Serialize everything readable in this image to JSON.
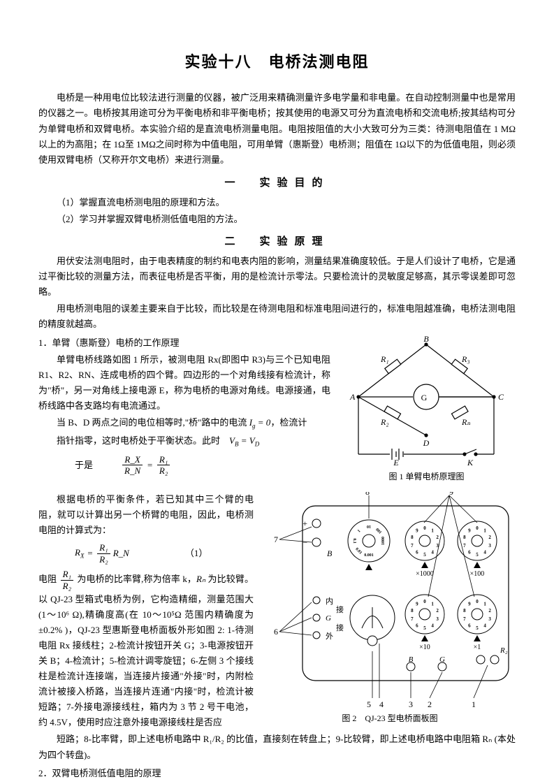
{
  "title": "实验十八　电桥法测电阻",
  "intro": "电桥是一种用电位比较法进行测量的仪器，被广泛用来精确测量许多电学量和非电量。在自动控制测量中也是常用的仪器之一。电桥按其用途可分为平衡电桥和非平衡电桥；按其使用的电源又可分为直流电桥和交流电桥;按其结构可分为单臂电桥和双臂电桥。本实验介绍的是直流电桥测量电阻。电阻按阻值的大小大致可分为三类：待测电阻值在 1 MΩ以上的为高阻；在 1Ω至 1MΩ之间时称为中值电阻，可用单臂（惠斯登）电桥测；阻值在 1Ω以下的为低值电阻，则必须使用双臂电桥（又称开尔文电桥）来进行测量。",
  "section1": {
    "header": "一　实验目的",
    "item1": "（1）掌握直流电桥测电阻的原理和方法。",
    "item2": "（2）学习并掌握双臂电桥测低值电阻的方法。"
  },
  "section2": {
    "header": "二　实验原理",
    "p1": "用伏安法测电阻时，由于电表精度的制约和电表内阻的影响，测量结果准确度较低。于是人们设计了电桥，它是通过平衡比较的测量方法，而表征电桥是否平衡，用的是检流计示零法。只要检流计的灵敏度足够高，其示零误差即可忽略。",
    "p2": "用电桥测电阻的误差主要来自于比较，而比较是在待测电阻和标准电阻间进行的，标准电阻越准确，电桥法测电阻的精度就越高。",
    "h1": "1．单臂（惠斯登）电桥的工作原理",
    "p3": "单臂电桥线路如图 1 所示，被测电阻 Rx(即图中 R3)与三个已知电阻 R1、R2、RN、连成电桥的四个臂。四边形的一个对角线接有检流计，称为\"桥\"，另一对角线上接电源 E，称为电桥的电源对角线。电源接通，电桥线路中各支路均有电流通过。",
    "p4_a": "当 B、D 两点之间的电位相等时,\"桥\"路中的电流 ",
    "p4_b": "，检流计",
    "p5_a": "指针指零，这时电桥处于平衡状态。此时",
    "yushi": "于是",
    "p6": "根据电桥的平衡条件，若已知其中三个臂的电阻，就可以计算出另一个桥臂的电阻，因此，电桥测电阻的计算式为：",
    "p7_a": "电阻",
    "p7_b": "为电桥的比率臂,称为倍率 k，",
    "p7_c": "为比较臂。以 QJ-23 型箱式电桥为例，它构造精细，测量范围大(1～10⁶ Ω),精确度高(在 10～10⁵Ω 范围内精确度为±0.2% )，QJ-23 型惠斯登电桥面板外形如图 2: 1-待测电阻 Rx 接线柱；2-检流计按钮开关 G；3-电源按钮开关 B；4-检流计；5-检流计调零旋钮；6-左侧 3 个接线柱是检流计连接端，当连接片接通\"外接\"时，内附检流计被接入桥路，当连接片连通\"内接\"时，检流计被短路；7-外接电源接线柱，箱内为 3 节 2 号干电池，约 4.5V，使用时应注意外接电源接线柱是否应",
    "p8": "短路；8-比率臂，即上述电桥电路中 R₁/R₂ 的比值，直接刻在转盘上；9-比较臂，即上述电桥电路中电阻箱 Rₙ (本处为四个转盘)。",
    "h2": "2．双臂电桥测低值电阻的原理"
  },
  "fig1": {
    "caption": "图 1 单臂电桥原理图",
    "labels": {
      "A": "A",
      "B": "B",
      "C": "C",
      "D": "D",
      "E": "E",
      "K": "K",
      "G": "G",
      "R1": "R₁",
      "R2": "R₂",
      "R3": "R₃",
      "RN": "Rₙ"
    },
    "stroke": "#000000",
    "fill": "#ffffff"
  },
  "fig2": {
    "caption": "图 2　QJ-23 型电桥面板图",
    "labels": {
      "plus": "+",
      "minus": "−",
      "B": "B",
      "nei": "内",
      "wai": "外",
      "jie1": "接",
      "jie2": "接",
      "G": "G",
      "x1000": "×1000",
      "x100": "×100",
      "x10": "×10",
      "x1": "×1",
      "B2": "B",
      "G2": "G",
      "R2": "R₂",
      "n1": "1",
      "n2": "2",
      "n3": "3",
      "n4": "4",
      "n5": "5",
      "n6": "6",
      "n7": "7",
      "n8": "8",
      "n9": "9"
    },
    "dial_values": [
      "0",
      "1",
      "2",
      "3",
      "4",
      "5",
      "6",
      "7",
      "8",
      "9"
    ],
    "ratio_values": [
      "0.001",
      "0.01",
      "0.1",
      "1",
      "10",
      "100",
      "1000"
    ],
    "stroke": "#000000",
    "fill": "#ffffff",
    "bg": "#f5f3ef"
  },
  "formulas": {
    "ig": "Iᵍ = 0",
    "vbd": "V_B = V_D",
    "ratio1_l_n": "R_X",
    "ratio1_l_d": "R_N",
    "ratio1_r_n": "R₁",
    "ratio1_r_d": "R₂",
    "rx_n": "R₁",
    "rx_d": "R₂",
    "rx_rn": "R_N",
    "eq1": "（1）",
    "r1r2_n": "R₁",
    "r1r2_d": "R₂",
    "rn_inline": "Rₙ"
  }
}
